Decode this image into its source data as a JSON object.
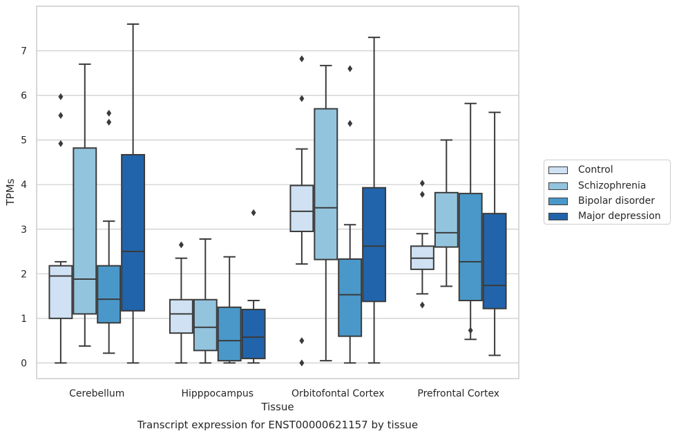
{
  "caption": "Transcript expression for ENST00000621157 by tissue",
  "colors": {
    "Control": "#cfe1f2",
    "Schizophrenia": "#93c4de",
    "Bipolar disorder": "#4a98c9",
    "Major depression": "#2164ab",
    "grid": "#cccccc",
    "frame": "#cccccc",
    "line": "#3a3a3a"
  },
  "chart_data": {
    "type": "box",
    "title": "",
    "xlabel": "Tissue",
    "ylabel": "TPMs",
    "ylim": [
      -0.35,
      8.0
    ],
    "yticks": [
      0,
      1,
      2,
      3,
      4,
      5,
      6,
      7
    ],
    "grid": true,
    "legend_position": "right",
    "categories": [
      "Cerebellum",
      "Hipppocampus",
      "Orbitofontal Cortex",
      "Prefrontal Cortex"
    ],
    "series": [
      {
        "name": "Control",
        "boxes": [
          {
            "whislo": 0.0,
            "q1": 1.0,
            "med": 1.95,
            "q3": 2.18,
            "whishi": 2.27,
            "fliers": [
              4.92,
              5.55,
              5.97
            ]
          },
          {
            "whislo": 0.0,
            "q1": 0.67,
            "med": 1.1,
            "q3": 1.42,
            "whishi": 2.35,
            "fliers": [
              2.65
            ]
          },
          {
            "whislo": 2.22,
            "q1": 2.95,
            "med": 3.4,
            "q3": 3.98,
            "whishi": 4.8,
            "fliers": [
              0.0,
              0.5,
              5.93,
              6.82
            ]
          },
          {
            "whislo": 1.55,
            "q1": 2.1,
            "med": 2.35,
            "q3": 2.62,
            "whishi": 2.9,
            "fliers": [
              1.3,
              3.78,
              4.03
            ]
          }
        ]
      },
      {
        "name": "Schizophrenia",
        "boxes": [
          {
            "whislo": 0.38,
            "q1": 1.1,
            "med": 1.88,
            "q3": 4.82,
            "whishi": 6.7,
            "fliers": []
          },
          {
            "whislo": 0.0,
            "q1": 0.28,
            "med": 0.8,
            "q3": 1.42,
            "whishi": 2.78,
            "fliers": []
          },
          {
            "whislo": 0.05,
            "q1": 2.32,
            "med": 3.48,
            "q3": 5.7,
            "whishi": 6.67,
            "fliers": []
          },
          {
            "whislo": 1.72,
            "q1": 2.6,
            "med": 2.92,
            "q3": 3.82,
            "whishi": 5.0,
            "fliers": []
          }
        ]
      },
      {
        "name": "Bipolar disorder",
        "boxes": [
          {
            "whislo": 0.22,
            "q1": 0.9,
            "med": 1.43,
            "q3": 2.18,
            "whishi": 3.18,
            "fliers": [
              5.4,
              5.6
            ]
          },
          {
            "whislo": 0.0,
            "q1": 0.05,
            "med": 0.5,
            "q3": 1.25,
            "whishi": 2.38,
            "fliers": []
          },
          {
            "whislo": 0.0,
            "q1": 0.6,
            "med": 1.53,
            "q3": 2.33,
            "whishi": 3.1,
            "fliers": [
              5.37,
              6.6
            ]
          },
          {
            "whislo": 0.53,
            "q1": 1.4,
            "med": 2.27,
            "q3": 3.8,
            "whishi": 5.82,
            "fliers": [
              0.73
            ]
          }
        ]
      },
      {
        "name": "Major depression",
        "boxes": [
          {
            "whislo": 0.0,
            "q1": 1.17,
            "med": 2.5,
            "q3": 4.67,
            "whishi": 7.6,
            "fliers": []
          },
          {
            "whislo": 0.0,
            "q1": 0.1,
            "med": 0.58,
            "q3": 1.2,
            "whishi": 1.4,
            "fliers": [
              3.37
            ]
          },
          {
            "whislo": 0.0,
            "q1": 1.38,
            "med": 2.62,
            "q3": 3.93,
            "whishi": 7.3,
            "fliers": []
          },
          {
            "whislo": 0.17,
            "q1": 1.22,
            "med": 1.74,
            "q3": 3.35,
            "whishi": 5.62,
            "fliers": []
          }
        ]
      }
    ]
  }
}
